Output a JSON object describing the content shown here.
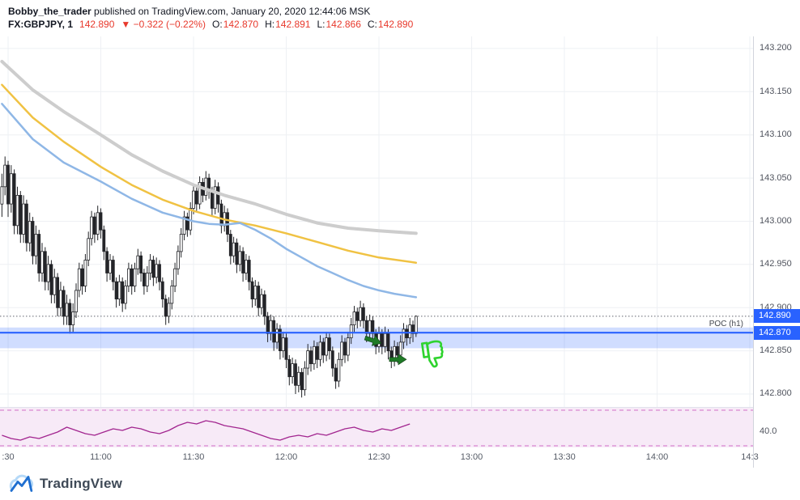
{
  "header": {
    "author": "Bobby_the_trader",
    "published": " published on TradingView.com, January 20, 2020 12:44:06 MSK",
    "symbol": "FX:GBPJPY, 1",
    "last_price": "142.890",
    "change": "▼ −0.322 (−0.22%)",
    "ohlc": [
      {
        "label": "O:",
        "value": "142.870"
      },
      {
        "label": "H:",
        "value": "142.891"
      },
      {
        "label": "L:",
        "value": "142.866"
      },
      {
        "label": "C:",
        "value": "142.890"
      }
    ]
  },
  "colors": {
    "accent": "#2962ff",
    "red": "#e8392c",
    "grid": "#eef0f4",
    "candle": "#232428",
    "price_line": "#60646e",
    "poc_band": "rgba(41,98,255,0.22)",
    "arrow": "#1f7a26",
    "thumb": "#2fd32f",
    "axis_text": "#50545e",
    "separator": "#e0e3eb"
  },
  "chart_data": {
    "type": "candlestick",
    "title": "FX:GBPJPY 1-minute chart",
    "symbol": "FX:GBPJPY",
    "interval": "1",
    "start_time": "10:28",
    "step_min": 1,
    "domain": {
      "price_top": 143.214,
      "price_bottom": 142.785
    },
    "y_ticks": [
      "143.200",
      "143.150",
      "143.100",
      "143.050",
      "143.000",
      "142.950",
      "142.900",
      "142.850",
      "142.800"
    ],
    "x_ticks": [
      {
        "label": ":30",
        "t": 2
      },
      {
        "label": "11:00",
        "t": 32
      },
      {
        "label": "11:30",
        "t": 62
      },
      {
        "label": "12:00",
        "t": 92
      },
      {
        "label": "12:30",
        "t": 122
      },
      {
        "label": "13:00",
        "t": 152
      },
      {
        "label": "13:30",
        "t": 182
      },
      {
        "label": "14:00",
        "t": 212
      },
      {
        "label": "14:3",
        "t": 242
      }
    ],
    "price_line": 142.89,
    "price_badges": [
      {
        "text": "142.890",
        "level": 142.89
      },
      {
        "text": "142.870",
        "level": 142.871
      }
    ],
    "poc": {
      "label": "POC (h1)",
      "level": 142.871,
      "band": [
        142.853,
        142.877
      ]
    },
    "moving_averages": [
      {
        "name": "slow-ma",
        "color": "#cdcdcd",
        "width": 4,
        "points": [
          [
            0,
            143.185
          ],
          [
            10,
            143.152
          ],
          [
            20,
            143.127
          ],
          [
            32,
            143.1
          ],
          [
            42,
            143.077
          ],
          [
            52,
            143.058
          ],
          [
            62,
            143.042
          ],
          [
            72,
            143.03
          ],
          [
            82,
            143.02
          ],
          [
            92,
            143.008
          ],
          [
            102,
            142.998
          ],
          [
            112,
            142.992
          ],
          [
            122,
            142.989
          ],
          [
            134,
            142.986
          ]
        ]
      },
      {
        "name": "mid-ma",
        "color": "#f0c243",
        "width": 2.5,
        "points": [
          [
            0,
            143.158
          ],
          [
            10,
            143.12
          ],
          [
            20,
            143.092
          ],
          [
            32,
            143.063
          ],
          [
            42,
            143.042
          ],
          [
            52,
            143.025
          ],
          [
            62,
            143.012
          ],
          [
            72,
            143.002
          ],
          [
            82,
            142.995
          ],
          [
            92,
            142.986
          ],
          [
            102,
            142.976
          ],
          [
            112,
            142.966
          ],
          [
            122,
            142.958
          ],
          [
            134,
            142.952
          ]
        ]
      },
      {
        "name": "fast-ma",
        "color": "#8fb7e6",
        "width": 2.5,
        "points": [
          [
            0,
            143.136
          ],
          [
            10,
            143.095
          ],
          [
            20,
            143.068
          ],
          [
            32,
            143.046
          ],
          [
            42,
            143.026
          ],
          [
            52,
            143.01
          ],
          [
            62,
            143.0
          ],
          [
            67,
            142.997
          ],
          [
            72,
            142.996
          ],
          [
            77,
            142.998
          ],
          [
            82,
            142.99
          ],
          [
            87,
            142.98
          ],
          [
            92,
            142.968
          ],
          [
            97,
            142.958
          ],
          [
            102,
            142.948
          ],
          [
            107,
            142.94
          ],
          [
            112,
            142.932
          ],
          [
            117,
            142.925
          ],
          [
            122,
            142.92
          ],
          [
            127,
            142.916
          ],
          [
            134,
            142.912
          ]
        ]
      }
    ],
    "candles": [
      [
        143.02,
        143.055,
        143.005,
        143.04
      ],
      [
        143.04,
        143.075,
        143.03,
        143.065
      ],
      [
        143.065,
        143.07,
        143.005,
        143.02
      ],
      [
        143.02,
        143.065,
        143.01,
        143.055
      ],
      [
        143.055,
        143.06,
        142.985,
        142.995
      ],
      [
        142.995,
        143.04,
        142.985,
        143.03
      ],
      [
        143.03,
        143.035,
        142.975,
        142.985
      ],
      [
        142.985,
        143.03,
        142.975,
        143.02
      ],
      [
        143.02,
        143.025,
        142.965,
        142.975
      ],
      [
        142.975,
        143.01,
        142.965,
        143.0
      ],
      [
        143.0,
        143.005,
        142.95,
        142.96
      ],
      [
        142.96,
        142.995,
        142.95,
        142.985
      ],
      [
        142.985,
        142.99,
        142.93,
        142.94
      ],
      [
        142.94,
        142.975,
        142.93,
        142.965
      ],
      [
        142.965,
        142.97,
        142.92,
        142.93
      ],
      [
        142.93,
        142.96,
        142.92,
        142.95
      ],
      [
        142.95,
        142.955,
        142.905,
        142.915
      ],
      [
        142.915,
        142.945,
        142.905,
        142.935
      ],
      [
        142.935,
        142.94,
        142.89,
        142.9
      ],
      [
        142.9,
        142.93,
        142.89,
        142.92
      ],
      [
        142.92,
        142.925,
        142.88,
        142.89
      ],
      [
        142.89,
        142.915,
        142.88,
        142.905
      ],
      [
        142.905,
        142.91,
        142.87,
        142.88
      ],
      [
        142.88,
        142.905,
        142.872,
        142.895
      ],
      [
        142.895,
        142.928,
        142.888,
        142.92
      ],
      [
        142.92,
        142.952,
        142.912,
        142.945
      ],
      [
        142.945,
        142.95,
        142.915,
        142.925
      ],
      [
        142.925,
        142.962,
        142.918,
        142.955
      ],
      [
        142.955,
        142.988,
        142.948,
        142.98
      ],
      [
        142.98,
        143.012,
        142.972,
        143.005
      ],
      [
        143.005,
        143.01,
        142.975,
        142.985
      ],
      [
        142.985,
        143.018,
        142.978,
        143.01
      ],
      [
        143.01,
        143.015,
        142.98,
        142.99
      ],
      [
        142.99,
        142.995,
        142.955,
        142.965
      ],
      [
        142.965,
        142.97,
        142.93,
        142.94
      ],
      [
        142.94,
        142.962,
        142.932,
        142.955
      ],
      [
        142.955,
        142.96,
        142.92,
        142.93
      ],
      [
        142.93,
        142.935,
        142.9,
        142.91
      ],
      [
        142.91,
        142.938,
        142.902,
        142.93
      ],
      [
        142.93,
        142.935,
        142.895,
        142.905
      ],
      [
        142.905,
        142.932,
        142.898,
        142.925
      ],
      [
        142.925,
        142.952,
        142.918,
        142.945
      ],
      [
        142.945,
        142.95,
        142.915,
        142.925
      ],
      [
        142.925,
        142.952,
        142.918,
        142.945
      ],
      [
        142.945,
        142.968,
        142.938,
        142.96
      ],
      [
        142.96,
        142.965,
        142.93,
        142.94
      ],
      [
        142.94,
        142.945,
        142.915,
        142.925
      ],
      [
        142.925,
        142.948,
        142.918,
        142.94
      ],
      [
        142.94,
        142.962,
        142.932,
        142.955
      ],
      [
        142.955,
        142.96,
        142.925,
        142.935
      ],
      [
        142.935,
        142.958,
        142.928,
        142.95
      ],
      [
        142.95,
        142.955,
        142.92,
        142.93
      ],
      [
        142.93,
        142.935,
        142.9,
        142.91
      ],
      [
        142.91,
        142.915,
        142.88,
        142.89
      ],
      [
        142.89,
        142.912,
        142.882,
        142.905
      ],
      [
        142.905,
        142.932,
        142.898,
        142.925
      ],
      [
        142.925,
        142.952,
        142.918,
        142.945
      ],
      [
        142.945,
        142.972,
        142.938,
        142.965
      ],
      [
        142.965,
        142.992,
        142.958,
        142.985
      ],
      [
        142.985,
        143.012,
        142.978,
        143.005
      ],
      [
        143.005,
        143.01,
        142.982,
        142.99
      ],
      [
        142.99,
        143.022,
        142.984,
        143.015
      ],
      [
        143.015,
        143.042,
        143.008,
        143.035
      ],
      [
        143.035,
        143.04,
        143.012,
        143.02
      ],
      [
        143.02,
        143.052,
        143.014,
        143.045
      ],
      [
        143.045,
        143.05,
        143.022,
        143.03
      ],
      [
        143.03,
        143.058,
        143.024,
        143.05
      ],
      [
        143.05,
        143.055,
        143.026,
        143.035
      ],
      [
        143.035,
        143.04,
        143.006,
        143.015
      ],
      [
        143.015,
        143.048,
        143.008,
        143.04
      ],
      [
        143.04,
        143.045,
        143.01,
        143.02
      ],
      [
        143.02,
        143.025,
        142.986,
        142.995
      ],
      [
        142.995,
        143.018,
        142.988,
        143.01
      ],
      [
        143.01,
        143.015,
        142.976,
        142.985
      ],
      [
        142.985,
        142.99,
        142.95,
        142.96
      ],
      [
        142.96,
        142.982,
        142.952,
        142.975
      ],
      [
        142.975,
        142.98,
        142.94,
        142.95
      ],
      [
        142.95,
        142.972,
        142.942,
        142.965
      ],
      [
        142.965,
        142.97,
        142.93,
        142.94
      ],
      [
        142.94,
        142.962,
        142.932,
        142.955
      ],
      [
        142.955,
        142.96,
        142.92,
        142.93
      ],
      [
        142.93,
        142.935,
        142.9,
        142.91
      ],
      [
        142.91,
        142.932,
        142.902,
        142.925
      ],
      [
        142.925,
        142.93,
        142.89,
        142.9
      ],
      [
        142.9,
        142.922,
        142.892,
        142.915
      ],
      [
        142.915,
        142.92,
        142.88,
        142.89
      ],
      [
        142.89,
        142.895,
        142.86,
        142.87
      ],
      [
        142.87,
        142.892,
        142.862,
        142.885
      ],
      [
        142.885,
        142.89,
        142.85,
        142.86
      ],
      [
        142.86,
        142.882,
        142.852,
        142.875
      ],
      [
        142.875,
        142.88,
        142.84,
        142.85
      ],
      [
        142.85,
        142.872,
        142.842,
        142.865
      ],
      [
        142.865,
        142.87,
        142.83,
        142.84
      ],
      [
        142.84,
        142.845,
        142.81,
        142.82
      ],
      [
        142.82,
        142.842,
        142.812,
        142.835
      ],
      [
        142.835,
        142.84,
        142.8,
        142.81
      ],
      [
        142.81,
        142.832,
        142.802,
        142.825
      ],
      [
        142.825,
        142.83,
        142.796,
        142.805
      ],
      [
        142.805,
        142.838,
        142.798,
        142.83
      ],
      [
        142.83,
        142.858,
        142.822,
        142.85
      ],
      [
        142.85,
        142.855,
        142.826,
        142.835
      ],
      [
        142.835,
        142.862,
        142.828,
        142.855
      ],
      [
        142.855,
        142.86,
        142.83,
        142.84
      ],
      [
        142.84,
        142.868,
        142.832,
        142.86
      ],
      [
        142.86,
        142.865,
        142.836,
        142.845
      ],
      [
        142.845,
        142.872,
        142.838,
        142.865
      ],
      [
        142.865,
        142.87,
        142.84,
        142.85
      ],
      [
        142.85,
        142.855,
        142.82,
        142.83
      ],
      [
        142.83,
        142.835,
        142.806,
        142.815
      ],
      [
        142.815,
        142.848,
        142.808,
        142.84
      ],
      [
        142.84,
        142.868,
        142.832,
        142.86
      ],
      [
        142.86,
        142.865,
        142.836,
        142.845
      ],
      [
        142.845,
        142.872,
        142.838,
        142.865
      ],
      [
        142.865,
        142.888,
        142.858,
        142.88
      ],
      [
        142.88,
        142.902,
        142.872,
        142.895
      ],
      [
        142.895,
        142.9,
        142.876,
        142.885
      ],
      [
        142.885,
        142.908,
        142.878,
        142.9
      ],
      [
        142.9,
        142.905,
        142.876,
        142.885
      ],
      [
        142.885,
        142.89,
        142.86,
        142.87
      ],
      [
        142.87,
        142.892,
        142.862,
        142.885
      ],
      [
        142.885,
        142.89,
        142.86,
        142.87
      ],
      [
        142.87,
        142.875,
        142.846,
        142.855
      ],
      [
        142.855,
        142.878,
        142.848,
        142.87
      ],
      [
        142.87,
        142.875,
        142.846,
        142.855
      ],
      [
        142.855,
        142.878,
        142.848,
        142.87
      ],
      [
        142.87,
        142.875,
        142.84,
        142.85
      ],
      [
        142.85,
        142.855,
        142.83,
        142.84
      ],
      [
        142.84,
        142.862,
        142.832,
        142.855
      ],
      [
        142.855,
        142.86,
        142.836,
        142.845
      ],
      [
        142.845,
        142.868,
        142.838,
        142.86
      ],
      [
        142.86,
        142.882,
        142.852,
        142.875
      ],
      [
        142.875,
        142.88,
        142.856,
        142.865
      ],
      [
        142.865,
        142.888,
        142.858,
        142.88
      ],
      [
        142.88,
        142.885,
        142.86,
        142.87
      ],
      [
        142.87,
        142.891,
        142.866,
        142.89
      ]
    ],
    "oscillator": {
      "name": "lower-oscillator",
      "color": "#a2258f",
      "bg": "#f7eaf7",
      "band_color": "#d06ec7",
      "scale": [
        30,
        55
      ],
      "dashed_levels": [
        53.5,
        31.5
      ],
      "start_min": 0,
      "step_min": 3,
      "values": [
        38,
        36,
        35,
        37,
        36,
        38,
        40,
        43,
        41,
        39,
        38,
        40,
        42,
        41,
        43,
        42,
        40,
        39,
        41,
        44,
        46,
        45,
        47,
        46,
        44,
        43,
        42,
        40,
        38,
        36,
        35,
        37,
        38,
        37,
        39,
        38,
        40,
        42,
        43,
        41,
        40,
        42,
        41,
        43,
        45
      ],
      "axis_label": "40.0",
      "axis_label_level": 40
    }
  },
  "annotations": {
    "arrows": [
      {
        "t": 120,
        "price": 142.862,
        "angle": 18
      },
      {
        "t": 128,
        "price": 142.84,
        "angle": 0
      }
    ],
    "thumb": {
      "t": 139,
      "price": 142.845,
      "meaning": "thumbs-down"
    }
  },
  "footer": {
    "brand": "TradingView"
  }
}
